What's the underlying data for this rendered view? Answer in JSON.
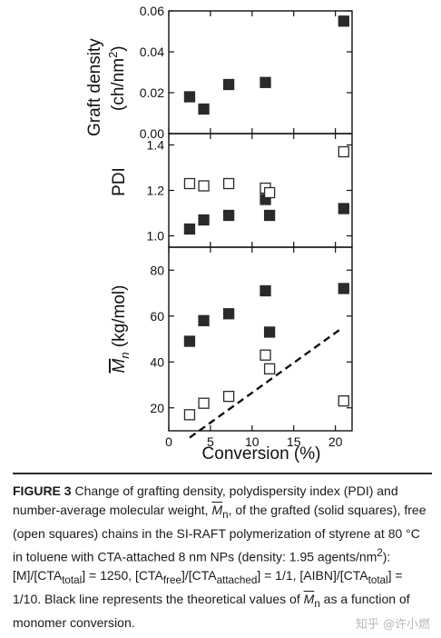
{
  "chart_data": [
    {
      "type": "scatter",
      "panel": "top",
      "ylabel": "Graft density",
      "ylabel_unit_pre": "(ch/nm",
      "ylabel_unit_sup": "2",
      "ylabel_unit_post": ")",
      "ylim": [
        0.0,
        0.06
      ],
      "yticks": [
        0.0,
        0.02,
        0.04,
        0.06
      ],
      "ytick_labels": [
        "0.00",
        "0.02",
        "0.04",
        "0.06"
      ],
      "series": [
        {
          "marker": "filled-square",
          "x": [
            2.5,
            4.2,
            7.2,
            11.6,
            21.0
          ],
          "y": [
            0.018,
            0.012,
            0.024,
            0.025,
            0.055
          ]
        }
      ]
    },
    {
      "type": "scatter",
      "panel": "middle",
      "ylabel": "PDI",
      "ylim": [
        0.95,
        1.45
      ],
      "yticks": [
        1.0,
        1.2,
        1.4
      ],
      "ytick_labels": [
        "1.0",
        "1.2",
        "1.4"
      ],
      "series": [
        {
          "marker": "filled-square",
          "x": [
            2.5,
            4.2,
            7.2,
            11.6,
            12.1,
            21.0
          ],
          "y": [
            1.03,
            1.07,
            1.09,
            1.16,
            1.09,
            1.12
          ]
        },
        {
          "marker": "open-square",
          "x": [
            2.5,
            4.2,
            7.2,
            11.6,
            12.1,
            21.0
          ],
          "y": [
            1.23,
            1.22,
            1.23,
            1.21,
            1.19,
            1.37
          ]
        }
      ]
    },
    {
      "type": "scatter",
      "panel": "bottom",
      "ylabel": "M",
      "ylabel_sub": "n",
      "ylabel_unit": " (kg/mol)",
      "xlabel": "Conversion (%)",
      "xlim": [
        0,
        22
      ],
      "xticks": [
        0,
        5,
        10,
        15,
        20
      ],
      "xtick_labels": [
        "0",
        "5",
        "10",
        "15",
        "20"
      ],
      "ylim": [
        10,
        90
      ],
      "yticks": [
        20,
        40,
        60,
        80
      ],
      "ytick_labels": [
        "20",
        "40",
        "60",
        "80"
      ],
      "series": [
        {
          "marker": "filled-square",
          "x": [
            2.5,
            4.2,
            7.2,
            11.6,
            12.1,
            21.0
          ],
          "y": [
            49,
            58,
            61,
            71,
            53,
            72
          ]
        },
        {
          "marker": "open-square",
          "x": [
            2.5,
            4.2,
            7.2,
            11.6,
            12.1,
            21.0
          ],
          "y": [
            17,
            22,
            25,
            43,
            37,
            23
          ]
        },
        {
          "marker": "dashed-line",
          "x": [
            2.5,
            20.5
          ],
          "y": [
            7,
            54
          ]
        }
      ]
    }
  ],
  "caption": {
    "label": "FIGURE 3",
    "p1": " Change of grafting density, polydispersity index (PDI) and number-average molecular weight, ",
    "mn_symbol": "M",
    "mn_sub": "n",
    "p2": ", of the grafted (solid squares), free (open squares) chains in the SI-RAFT polymerization of styrene at 80 °C in toluene with CTA-attached 8 nm NPs (density: 1.95 agents/nm",
    "sup2": "2",
    "p3": "): [M]/[CTA",
    "sub_total": "total",
    "p4": "] = 1250, [CTA",
    "sub_free": "free",
    "p5": "]/[CTA",
    "sub_attached": "attached",
    "p6": "] = 1/1, [AIBN]/[CTA",
    "sub_total2": "total",
    "p7": "] = 1/10. Black line represents the theoretical values of ",
    "mn_symbol2": "M",
    "mn_sub2": "n",
    "p8": " as a function of monomer conversion."
  },
  "watermark": "知乎 @许小燃"
}
